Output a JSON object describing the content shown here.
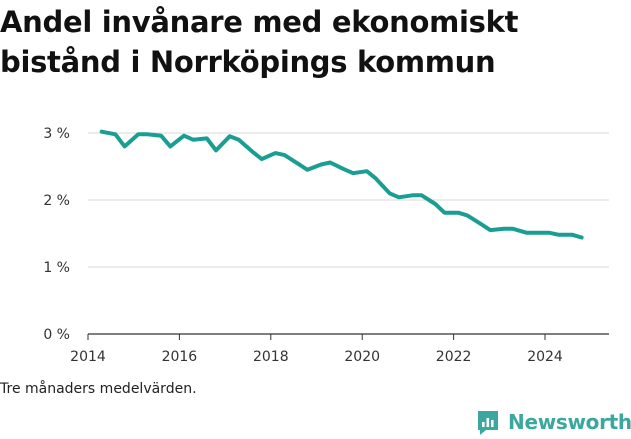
{
  "chart_data": {
    "type": "line",
    "title_line1": "Andel invånare med ekonomiskt",
    "title_line2": "bistånd i Norrköpings kommun",
    "xlabel": "",
    "ylabel": "",
    "xlim": [
      2014,
      2025.4
    ],
    "ylim": [
      0,
      3.2
    ],
    "grid": true,
    "x_ticks": [
      2014,
      2016,
      2018,
      2020,
      2022,
      2024
    ],
    "x_tick_labels": [
      "2014",
      "2016",
      "2018",
      "2020",
      "2022",
      "2024"
    ],
    "y_ticks": [
      0,
      1,
      2,
      3
    ],
    "y_tick_labels": [
      "0 %",
      "1 %",
      "2 %",
      "3 %"
    ],
    "line_color": "#1a9e94",
    "series": [
      {
        "x": [
          2014.3,
          2014.6,
          2014.8,
          2015.1,
          2015.3,
          2015.6,
          2015.8,
          2016.1,
          2016.3,
          2016.6,
          2016.8,
          2017.1,
          2017.3,
          2017.6,
          2017.8,
          2018.1,
          2018.3,
          2018.6,
          2018.8,
          2019.1,
          2019.3,
          2019.6,
          2019.8,
          2020.1,
          2020.3,
          2020.6,
          2020.8,
          2021.1,
          2021.3,
          2021.6,
          2021.8,
          2022.1,
          2022.3,
          2022.6,
          2022.8,
          2023.1,
          2023.3,
          2023.6,
          2023.8,
          2024.1,
          2024.3,
          2024.6,
          2024.8
        ],
        "values": [
          3.02,
          2.98,
          2.8,
          2.98,
          2.98,
          2.96,
          2.8,
          2.96,
          2.9,
          2.92,
          2.74,
          2.95,
          2.9,
          2.72,
          2.61,
          2.7,
          2.67,
          2.54,
          2.45,
          2.53,
          2.56,
          2.46,
          2.4,
          2.43,
          2.32,
          2.1,
          2.04,
          2.07,
          2.07,
          1.94,
          1.81,
          1.81,
          1.77,
          1.64,
          1.55,
          1.57,
          1.57,
          1.51,
          1.51,
          1.51,
          1.48,
          1.48,
          1.44
        ]
      }
    ],
    "note": "Tre månaders medelvärden.",
    "brand": "Newsworthy",
    "brand_icon": "newsworthy-logo-icon",
    "brand_color": "#3aa89e"
  }
}
